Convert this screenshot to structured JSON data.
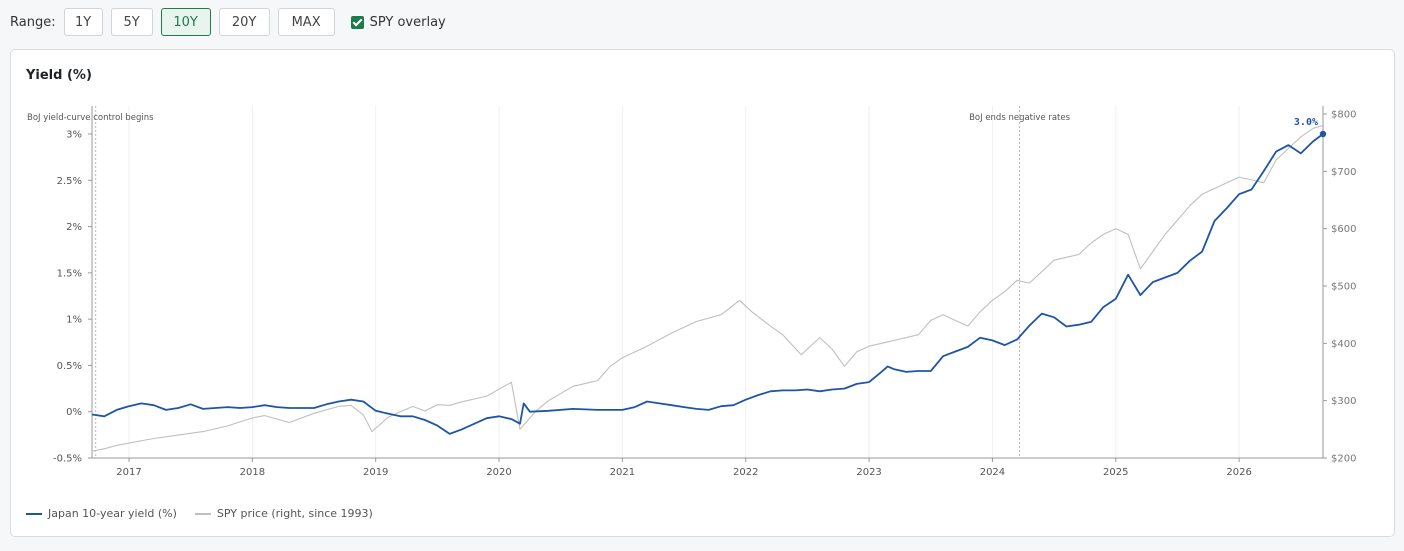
{
  "toolbar": {
    "range_label": "Range:",
    "range_options": [
      "1Y",
      "5Y",
      "10Y",
      "20Y",
      "MAX"
    ],
    "active_range": "10Y",
    "overlay_label": "SPY overlay",
    "overlay_checked": true
  },
  "colors": {
    "yield": "#1f55a5",
    "spy": "#bfbfbf",
    "accent": "#1f7a4c",
    "annotation": "#b9b9c9"
  },
  "chart_data": {
    "type": "line",
    "title": "Yield (%)",
    "x_ticks": [
      "2017",
      "2018",
      "2019",
      "2020",
      "2021",
      "2022",
      "2023",
      "2024",
      "2025",
      "2026"
    ],
    "x_range": [
      2016.7,
      2026.68
    ],
    "y_left": {
      "ticks": [
        "-0.5%",
        "0%",
        "0.5%",
        "1%",
        "1.5%",
        "2%",
        "2.5%",
        "3%"
      ],
      "range": [
        -0.5,
        3.0
      ]
    },
    "y_right": {
      "ticks": [
        "$200",
        "$300",
        "$400",
        "$500",
        "$600",
        "$700",
        "$800"
      ],
      "range": [
        200,
        800
      ]
    },
    "annotations": [
      {
        "x": 2016.73,
        "label": "BoJ yield-curve control begins"
      },
      {
        "x": 2024.22,
        "label": "BoJ ends negative rates"
      }
    ],
    "last_value_label": "3.0%",
    "grid": "vertical",
    "legend_position": "bottom-left",
    "series": [
      {
        "name": "Japan 10-year yield (%)",
        "axis": "left",
        "points": [
          [
            2016.7,
            -0.03
          ],
          [
            2016.8,
            -0.05
          ],
          [
            2016.9,
            0.02
          ],
          [
            2017.0,
            0.06
          ],
          [
            2017.1,
            0.09
          ],
          [
            2017.2,
            0.07
          ],
          [
            2017.3,
            0.02
          ],
          [
            2017.4,
            0.04
          ],
          [
            2017.5,
            0.08
          ],
          [
            2017.6,
            0.03
          ],
          [
            2017.7,
            0.04
          ],
          [
            2017.8,
            0.05
          ],
          [
            2017.9,
            0.04
          ],
          [
            2018.0,
            0.05
          ],
          [
            2018.1,
            0.07
          ],
          [
            2018.2,
            0.05
          ],
          [
            2018.3,
            0.04
          ],
          [
            2018.4,
            0.04
          ],
          [
            2018.5,
            0.04
          ],
          [
            2018.6,
            0.08
          ],
          [
            2018.7,
            0.11
          ],
          [
            2018.8,
            0.13
          ],
          [
            2018.9,
            0.11
          ],
          [
            2019.0,
            0.01
          ],
          [
            2019.1,
            -0.02
          ],
          [
            2019.2,
            -0.05
          ],
          [
            2019.3,
            -0.05
          ],
          [
            2019.4,
            -0.09
          ],
          [
            2019.5,
            -0.15
          ],
          [
            2019.6,
            -0.24
          ],
          [
            2019.7,
            -0.19
          ],
          [
            2019.8,
            -0.13
          ],
          [
            2019.9,
            -0.07
          ],
          [
            2020.0,
            -0.05
          ],
          [
            2020.1,
            -0.08
          ],
          [
            2020.17,
            -0.13
          ],
          [
            2020.2,
            0.09
          ],
          [
            2020.25,
            0.0
          ],
          [
            2020.4,
            0.01
          ],
          [
            2020.6,
            0.03
          ],
          [
            2020.8,
            0.02
          ],
          [
            2021.0,
            0.02
          ],
          [
            2021.1,
            0.05
          ],
          [
            2021.2,
            0.11
          ],
          [
            2021.3,
            0.09
          ],
          [
            2021.4,
            0.07
          ],
          [
            2021.5,
            0.05
          ],
          [
            2021.6,
            0.03
          ],
          [
            2021.7,
            0.02
          ],
          [
            2021.8,
            0.06
          ],
          [
            2021.9,
            0.07
          ],
          [
            2022.0,
            0.13
          ],
          [
            2022.1,
            0.18
          ],
          [
            2022.2,
            0.22
          ],
          [
            2022.3,
            0.23
          ],
          [
            2022.4,
            0.23
          ],
          [
            2022.5,
            0.24
          ],
          [
            2022.6,
            0.22
          ],
          [
            2022.7,
            0.24
          ],
          [
            2022.8,
            0.25
          ],
          [
            2022.9,
            0.3
          ],
          [
            2023.0,
            0.32
          ],
          [
            2023.1,
            0.43
          ],
          [
            2023.15,
            0.49
          ],
          [
            2023.2,
            0.46
          ],
          [
            2023.3,
            0.43
          ],
          [
            2023.4,
            0.44
          ],
          [
            2023.5,
            0.44
          ],
          [
            2023.6,
            0.6
          ],
          [
            2023.7,
            0.65
          ],
          [
            2023.8,
            0.7
          ],
          [
            2023.9,
            0.8
          ],
          [
            2024.0,
            0.77
          ],
          [
            2024.1,
            0.72
          ],
          [
            2024.2,
            0.78
          ],
          [
            2024.3,
            0.93
          ],
          [
            2024.4,
            1.06
          ],
          [
            2024.5,
            1.02
          ],
          [
            2024.6,
            0.92
          ],
          [
            2024.7,
            0.94
          ],
          [
            2024.8,
            0.97
          ],
          [
            2024.9,
            1.13
          ],
          [
            2025.0,
            1.22
          ],
          [
            2025.1,
            1.48
          ],
          [
            2025.2,
            1.26
          ],
          [
            2025.3,
            1.4
          ],
          [
            2025.4,
            1.45
          ],
          [
            2025.5,
            1.5
          ],
          [
            2025.6,
            1.63
          ],
          [
            2025.7,
            1.73
          ],
          [
            2025.8,
            2.06
          ],
          [
            2025.9,
            2.2
          ],
          [
            2026.0,
            2.35
          ],
          [
            2026.1,
            2.4
          ],
          [
            2026.2,
            2.6
          ],
          [
            2026.3,
            2.81
          ],
          [
            2026.4,
            2.88
          ],
          [
            2026.5,
            2.79
          ],
          [
            2026.6,
            2.92
          ],
          [
            2026.68,
            3.0
          ]
        ]
      },
      {
        "name": "SPY price (right, since 1993)",
        "axis": "right",
        "points": [
          [
            2016.7,
            212
          ],
          [
            2016.8,
            216
          ],
          [
            2016.9,
            222
          ],
          [
            2017.0,
            226
          ],
          [
            2017.2,
            234
          ],
          [
            2017.4,
            240
          ],
          [
            2017.6,
            246
          ],
          [
            2017.8,
            256
          ],
          [
            2018.0,
            270
          ],
          [
            2018.1,
            274
          ],
          [
            2018.3,
            262
          ],
          [
            2018.5,
            278
          ],
          [
            2018.7,
            290
          ],
          [
            2018.8,
            292
          ],
          [
            2018.9,
            275
          ],
          [
            2018.97,
            246
          ],
          [
            2019.1,
            271
          ],
          [
            2019.3,
            290
          ],
          [
            2019.4,
            282
          ],
          [
            2019.5,
            293
          ],
          [
            2019.6,
            292
          ],
          [
            2019.7,
            298
          ],
          [
            2019.9,
            308
          ],
          [
            2020.0,
            320
          ],
          [
            2020.1,
            332
          ],
          [
            2020.17,
            250
          ],
          [
            2020.3,
            282
          ],
          [
            2020.4,
            300
          ],
          [
            2020.6,
            325
          ],
          [
            2020.8,
            335
          ],
          [
            2020.9,
            360
          ],
          [
            2021.0,
            375
          ],
          [
            2021.2,
            395
          ],
          [
            2021.4,
            418
          ],
          [
            2021.6,
            438
          ],
          [
            2021.8,
            450
          ],
          [
            2021.95,
            475
          ],
          [
            2022.05,
            455
          ],
          [
            2022.2,
            430
          ],
          [
            2022.3,
            415
          ],
          [
            2022.45,
            380
          ],
          [
            2022.6,
            410
          ],
          [
            2022.7,
            390
          ],
          [
            2022.8,
            360
          ],
          [
            2022.9,
            385
          ],
          [
            2023.0,
            395
          ],
          [
            2023.2,
            405
          ],
          [
            2023.4,
            415
          ],
          [
            2023.5,
            440
          ],
          [
            2023.6,
            450
          ],
          [
            2023.8,
            430
          ],
          [
            2023.9,
            455
          ],
          [
            2024.0,
            475
          ],
          [
            2024.1,
            490
          ],
          [
            2024.2,
            510
          ],
          [
            2024.3,
            505
          ],
          [
            2024.4,
            525
          ],
          [
            2024.5,
            545
          ],
          [
            2024.6,
            550
          ],
          [
            2024.7,
            555
          ],
          [
            2024.8,
            575
          ],
          [
            2024.9,
            590
          ],
          [
            2025.0,
            600
          ],
          [
            2025.1,
            590
          ],
          [
            2025.2,
            530
          ],
          [
            2025.3,
            560
          ],
          [
            2025.4,
            590
          ],
          [
            2025.5,
            615
          ],
          [
            2025.6,
            640
          ],
          [
            2025.7,
            660
          ],
          [
            2025.8,
            670
          ],
          [
            2025.9,
            680
          ],
          [
            2026.0,
            690
          ],
          [
            2026.1,
            685
          ],
          [
            2026.2,
            680
          ],
          [
            2026.3,
            720
          ],
          [
            2026.4,
            740
          ],
          [
            2026.5,
            760
          ],
          [
            2026.6,
            775
          ],
          [
            2026.68,
            780
          ]
        ]
      }
    ]
  }
}
